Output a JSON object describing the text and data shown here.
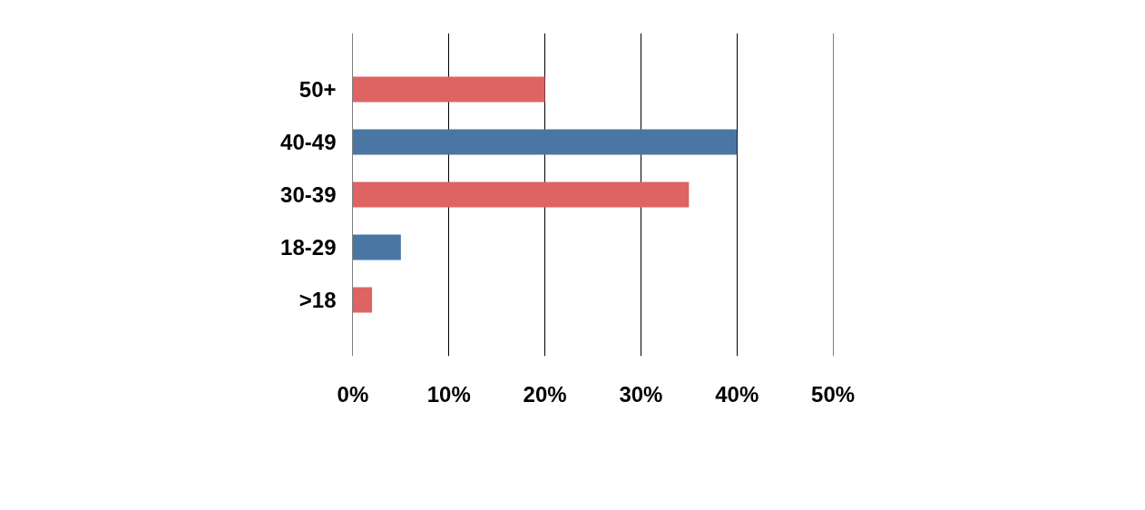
{
  "chart_data": {
    "type": "bar",
    "orientation": "horizontal",
    "categories": [
      "50+",
      "40-49",
      "30-39",
      "18-29",
      ">18"
    ],
    "values": [
      20,
      40,
      35,
      5,
      2
    ],
    "colors": [
      "#dd6462",
      "#4a76a3",
      "#dd6462",
      "#4a76a3",
      "#dd6462"
    ],
    "xlim": [
      0,
      50
    ],
    "xticks": [
      {
        "value": 0,
        "label": "0%"
      },
      {
        "value": 10,
        "label": "10%"
      },
      {
        "value": 20,
        "label": "20%"
      },
      {
        "value": 30,
        "label": "30%"
      },
      {
        "value": 40,
        "label": "40%"
      },
      {
        "value": 50,
        "label": "50%"
      }
    ],
    "grid": "x"
  }
}
